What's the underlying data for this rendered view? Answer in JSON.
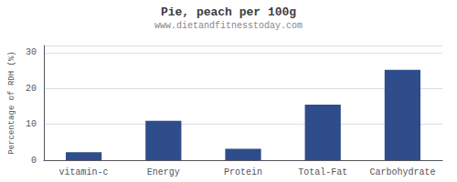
{
  "chart_data": {
    "type": "bar",
    "title": "Pie, peach per 100g",
    "subtitle": "www.dietandfitnesstoday.com",
    "categories": [
      "vitamin-c",
      "Energy",
      "Protein",
      "Total-Fat",
      "Carbohydrate"
    ],
    "values": [
      2.2,
      11.0,
      3.2,
      15.5,
      25.2
    ],
    "color": "#2e4d8a",
    "ylabel": "Percentage of RDH (%)",
    "ylim": [
      0,
      32
    ],
    "yticks": [
      0,
      10,
      20,
      30
    ],
    "grid": true
  }
}
